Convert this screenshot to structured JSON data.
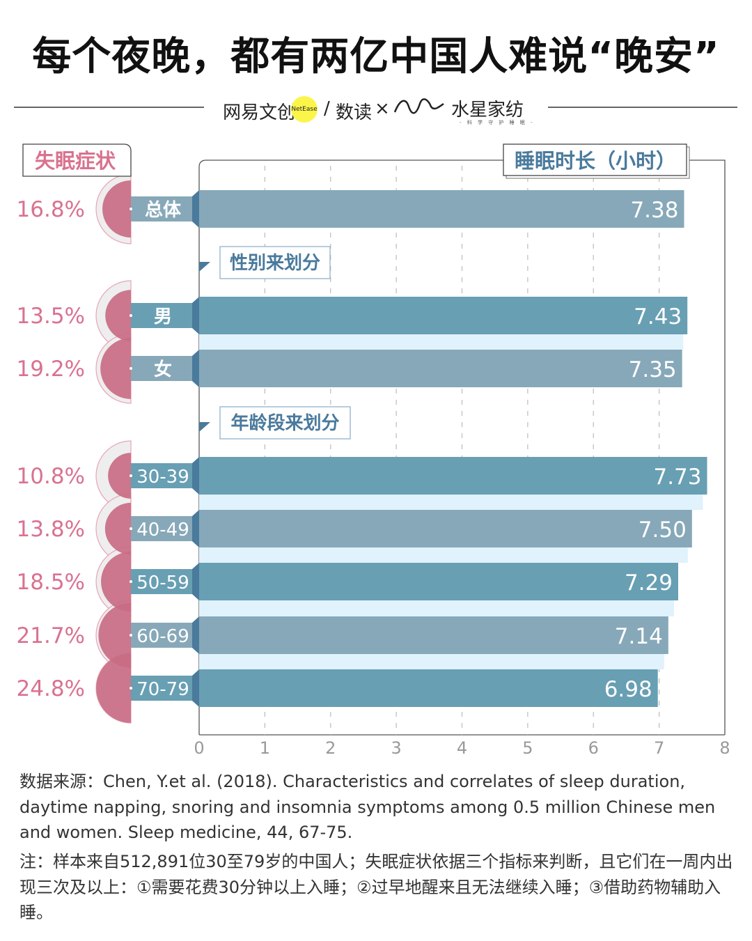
{
  "title": "每个夜晚，都有两亿中国人难说“晚安”",
  "logos": {
    "brand1": "网易文创",
    "brand1_badge": "NetEase",
    "brand2": "数读",
    "times": "×",
    "brand3": "水星家纺",
    "brand3_tagline": "- 科 学 守 护 睡 眠 -"
  },
  "colors": {
    "pink": "#c96d84",
    "pink_text": "#d9728f",
    "grey_ring": "#eeeeee",
    "bar_teal": "#689fb3",
    "bar_grey": "#87a8b8",
    "connector": "#4a7a9c",
    "band": "#e0f2fc",
    "header_blue": "#4a7a9c"
  },
  "chart_data": {
    "type": "bar",
    "orientation": "horizontal",
    "left_header": "失眠症状",
    "right_header": "睡眠时长（小时）",
    "xlim": [
      0,
      8
    ],
    "xticks": [
      "0",
      "1",
      "2",
      "3",
      "4",
      "5",
      "6",
      "7",
      "8"
    ],
    "grid": "vertical dashed",
    "groups": [
      {
        "label": "",
        "rows": [
          {
            "category": "总体",
            "sleep_hours": 7.38,
            "insomnia_pct": 16.8,
            "insomnia_label": "16.8%",
            "value_label": "7.38"
          }
        ]
      },
      {
        "label": "性别来划分",
        "rows": [
          {
            "category": "男",
            "sleep_hours": 7.43,
            "insomnia_pct": 13.5,
            "insomnia_label": "13.5%",
            "value_label": "7.43"
          },
          {
            "category": "女",
            "sleep_hours": 7.35,
            "insomnia_pct": 19.2,
            "insomnia_label": "19.2%",
            "value_label": "7.35"
          }
        ]
      },
      {
        "label": "年龄段来划分",
        "rows": [
          {
            "category": "30-39",
            "sleep_hours": 7.73,
            "insomnia_pct": 10.8,
            "insomnia_label": "10.8%",
            "value_label": "7.73"
          },
          {
            "category": "40-49",
            "sleep_hours": 7.5,
            "insomnia_pct": 13.8,
            "insomnia_label": "13.8%",
            "value_label": "7.50"
          },
          {
            "category": "50-59",
            "sleep_hours": 7.29,
            "insomnia_pct": 18.5,
            "insomnia_label": "18.5%",
            "value_label": "7.29"
          },
          {
            "category": "60-69",
            "sleep_hours": 7.14,
            "insomnia_pct": 21.7,
            "insomnia_label": "21.7%",
            "value_label": "7.14"
          },
          {
            "category": "70-79",
            "sleep_hours": 6.98,
            "insomnia_pct": 24.8,
            "insomnia_label": "24.8%",
            "value_label": "6.98"
          }
        ]
      }
    ]
  },
  "source": "数据来源：Chen, Y.et al. (2018). Characteristics and correlates of sleep duration, daytime napping, snoring and insomnia symptoms among 0.5 million Chinese men and women. Sleep medicine, 44, 67-75.",
  "note": "注：样本来自512,891位30至79岁的中国人；失眠症状依据三个指标来判断，且它们在一周内出现三次及以上：①需要花费30分钟以上入睡；②过早地醒来且无法继续入睡；③借助药物辅助入睡。"
}
